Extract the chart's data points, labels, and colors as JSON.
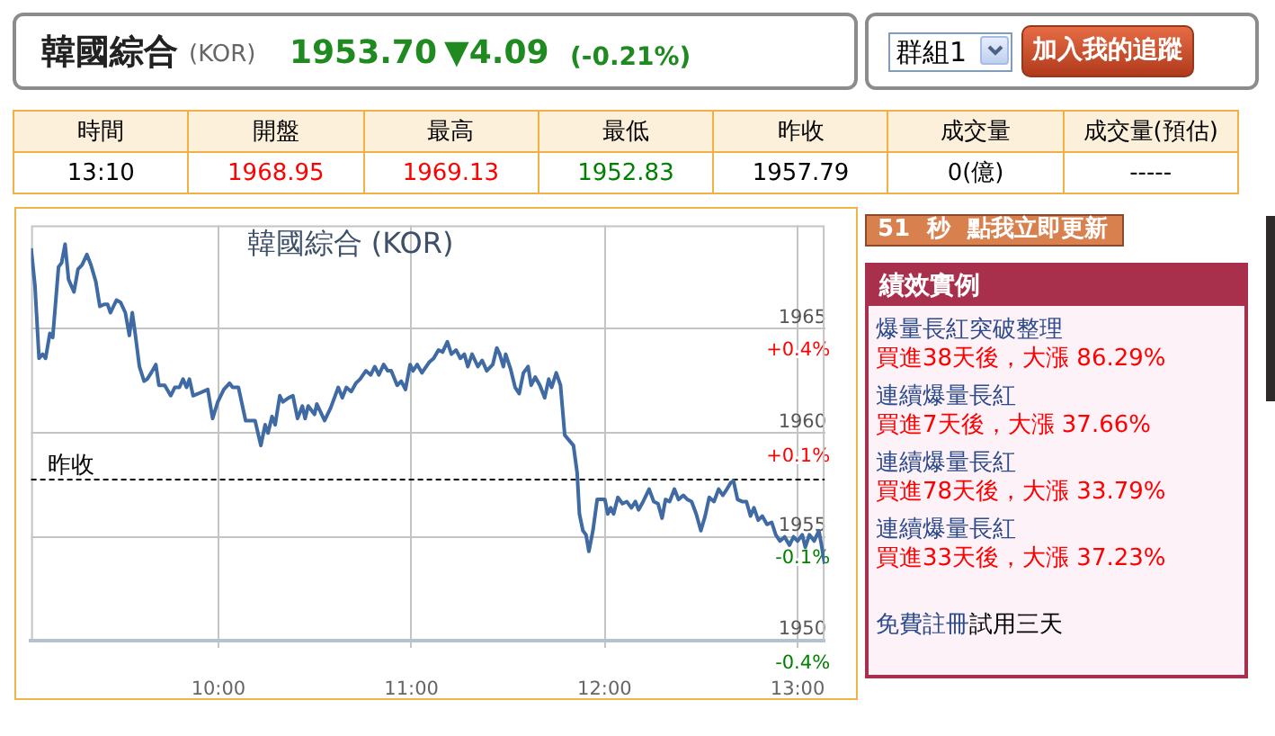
{
  "chart_data": [
    {
      "type": "other",
      "title": "韓國綜合",
      "subtitle": "(KOR)",
      "annotations": [
        "1953.70",
        "▼4.09",
        "(-0.21%)",
        "群組1",
        "加入我的追蹤"
      ]
    },
    {
      "type": "other",
      "categories": [
        "時間",
        "開盤",
        "最高",
        "最低",
        "昨收",
        "成交量",
        "成交量(預估)"
      ],
      "value_labels": [
        "13:10",
        "1968.95",
        "1969.13",
        "1952.83",
        "1957.79",
        "0(億)",
        "-----"
      ]
    },
    {
      "type": "line",
      "title": "韓國綜合 (KOR)",
      "color": "#3f6aa3",
      "x": [
        9.03,
        9.05,
        9.071,
        9.09,
        9.105,
        9.127,
        9.142,
        9.172,
        9.188,
        9.206,
        9.224,
        9.252,
        9.273,
        9.294,
        9.319,
        9.34,
        9.365,
        9.386,
        9.408,
        9.426,
        9.441,
        9.472,
        9.493,
        9.518,
        9.539,
        9.554,
        9.569,
        9.591,
        9.615,
        9.631,
        9.652,
        9.676,
        9.692,
        9.722,
        9.753,
        9.774,
        9.798,
        9.817,
        9.835,
        9.85,
        9.869,
        9.896,
        9.945,
        9.97,
        9.997,
        10.028,
        10.058,
        10.074,
        10.104,
        10.141,
        10.19,
        10.22,
        10.242,
        10.257,
        10.278,
        10.294,
        10.318,
        10.334,
        10.364,
        10.386,
        10.41,
        10.435,
        10.449,
        10.465,
        10.498,
        10.51,
        10.55,
        10.581,
        10.621,
        10.642,
        10.663,
        10.688,
        10.712,
        10.734,
        10.764,
        10.789,
        10.81,
        10.831,
        10.856,
        10.877,
        10.895,
        10.926,
        10.947,
        10.969,
        10.993,
        11.008,
        11.03,
        11.054,
        11.091,
        11.115,
        11.14,
        11.161,
        11.186,
        11.207,
        11.231,
        11.253,
        11.274,
        11.292,
        11.314,
        11.344,
        11.366,
        11.39,
        11.421,
        11.442,
        11.457,
        11.476,
        11.488,
        11.513,
        11.537,
        11.558,
        11.58,
        11.604,
        11.62,
        11.641,
        11.665,
        11.69,
        11.711,
        11.726,
        11.75,
        11.772,
        11.794,
        11.839,
        11.858,
        11.87,
        11.888,
        11.904,
        11.919,
        11.94,
        11.962,
        11.986,
        12.002,
        12.017,
        12.032,
        12.047,
        12.069,
        12.093,
        12.115,
        12.139,
        12.16,
        12.176,
        12.2,
        12.231,
        12.255,
        12.277,
        12.298,
        12.316,
        12.337,
        12.362,
        12.383,
        12.408,
        12.429,
        12.451,
        12.475,
        12.499,
        12.521,
        12.542,
        12.567,
        12.591,
        12.613,
        12.634,
        12.653,
        12.668,
        12.689,
        12.713,
        12.735,
        12.756,
        12.774,
        12.796,
        12.817,
        12.841,
        12.866,
        12.887,
        12.909,
        12.933,
        12.958,
        12.979,
        13.0,
        13.024,
        13.04,
        13.061,
        13.086,
        13.11,
        13.122,
        13.14
      ],
      "values": [
        1968.9,
        1967.1,
        1963.6,
        1963.8,
        1963.6,
        1964.8,
        1964.6,
        1968.0,
        1968.2,
        1969.1,
        1967.4,
        1966.8,
        1967.9,
        1968.1,
        1968.6,
        1968.1,
        1967.3,
        1966.1,
        1966.2,
        1966.2,
        1965.8,
        1966.4,
        1966.3,
        1965.8,
        1964.7,
        1965.8,
        1964.8,
        1963.2,
        1962.5,
        1962.6,
        1962.9,
        1963.3,
        1962.3,
        1962.3,
        1961.8,
        1962.2,
        1962.2,
        1962.6,
        1962.2,
        1962.6,
        1961.8,
        1961.9,
        1962.1,
        1960.7,
        1961.5,
        1962.1,
        1962.4,
        1962.2,
        1962.2,
        1960.6,
        1960.6,
        1959.4,
        1960.4,
        1960.0,
        1960.8,
        1960.4,
        1961.8,
        1961.5,
        1961.7,
        1961.8,
        1960.7,
        1961.3,
        1960.7,
        1961.3,
        1960.9,
        1961.4,
        1960.6,
        1961.2,
        1962.2,
        1961.7,
        1962.2,
        1962.0,
        1962.4,
        1962.6,
        1963.0,
        1962.8,
        1963.2,
        1962.8,
        1963.3,
        1963.0,
        1963.0,
        1962.3,
        1962.5,
        1962.1,
        1963.3,
        1963.0,
        1963.3,
        1962.9,
        1963.4,
        1963.6,
        1964.0,
        1963.9,
        1964.4,
        1963.8,
        1964.0,
        1963.6,
        1963.8,
        1963.2,
        1963.8,
        1963.2,
        1963.5,
        1963.0,
        1963.3,
        1964.1,
        1963.8,
        1963.2,
        1963.8,
        1963.1,
        1962.2,
        1961.9,
        1962.9,
        1963.2,
        1962.3,
        1962.7,
        1962.3,
        1961.7,
        1962.6,
        1962.2,
        1962.9,
        1962.3,
        1959.9,
        1959.4,
        1958.1,
        1956.1,
        1955.3,
        1955.1,
        1954.3,
        1955.3,
        1956.8,
        1956.8,
        1956.8,
        1956.1,
        1956.4,
        1956.1,
        1956.9,
        1956.6,
        1956.7,
        1956.4,
        1956.7,
        1956.3,
        1956.7,
        1957.3,
        1956.7,
        1956.6,
        1955.9,
        1956.8,
        1956.7,
        1957.3,
        1956.8,
        1957.0,
        1956.8,
        1956.7,
        1956.1,
        1955.3,
        1956.0,
        1956.9,
        1956.7,
        1957.3,
        1957.0,
        1957.3,
        1957.6,
        1957.7,
        1956.8,
        1956.7,
        1956.7,
        1956.0,
        1956.4,
        1955.8,
        1956.0,
        1955.6,
        1955.7,
        1955.1,
        1954.8,
        1955.0,
        1954.6,
        1955.0,
        1954.8,
        1955.1,
        1954.5,
        1955.1,
        1954.8,
        1955.3,
        1954.7,
        1953.7
      ],
      "xlim": [
        9.03,
        13.14
      ],
      "xticks": [
        {
          "value": 10,
          "label": "10:00"
        },
        {
          "value": 11,
          "label": "11:00"
        },
        {
          "value": 12,
          "label": "12:00"
        },
        {
          "value": 13,
          "label": "13:00"
        }
      ],
      "ylim": [
        1950,
        1970
      ],
      "yticks": [
        1950,
        1955,
        1960,
        1965
      ],
      "y2lim": [
        -0.4,
        0.62
      ],
      "y2ticks": [
        {
          "value": -0.4,
          "label": "-0.4%"
        },
        {
          "value": -0.14,
          "label": "-0.1%"
        },
        {
          "value": 0.11,
          "label": "+0.1%"
        },
        {
          "value": 0.37,
          "label": "+0.4%"
        }
      ],
      "ref_lines": [
        {
          "axis": "y",
          "value": 1957.79,
          "label": "昨收",
          "color": "#000000",
          "line_style": "dashed"
        }
      ],
      "grid": true
    },
    {
      "type": "other",
      "title": "績效實例",
      "annotations": [
        "51 秒 點我立即更新",
        "爆量長紅突破整理",
        "買進38天後，大漲 86.29%",
        "連續爆量長紅",
        "買進7天後，大漲 37.66%",
        "連續爆量長紅",
        "買進78天後，大漲 33.79%",
        "連續爆量長紅",
        "買進33天後，大漲 37.23%",
        "免費註冊",
        "試用三天"
      ]
    }
  ]
}
